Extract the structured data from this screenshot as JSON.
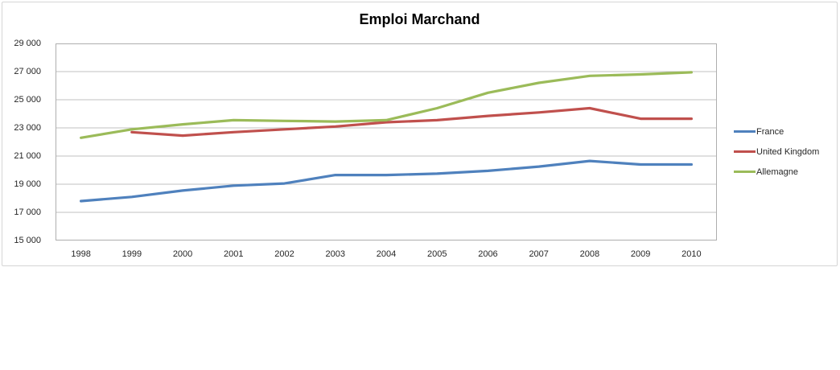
{
  "chart_data": {
    "type": "line",
    "title": "Emploi Marchand",
    "categories": [
      "1998",
      "1999",
      "2000",
      "2001",
      "2002",
      "2003",
      "2004",
      "2005",
      "2006",
      "2007",
      "2008",
      "2009",
      "2010"
    ],
    "series": [
      {
        "name": "France",
        "color": "#4F81BD",
        "values": [
          17800,
          18100,
          18550,
          18900,
          19050,
          19650,
          19650,
          19750,
          19950,
          20250,
          20650,
          20400,
          20400
        ]
      },
      {
        "name": "United Kingdom",
        "color": "#C0504D",
        "values": [
          null,
          22700,
          22450,
          22700,
          22900,
          23100,
          23400,
          23550,
          23850,
          24100,
          24400,
          23650,
          23650
        ]
      },
      {
        "name": "Allemagne",
        "color": "#9BBB59",
        "values": [
          22300,
          22900,
          23250,
          23550,
          23500,
          23450,
          23550,
          24400,
          25500,
          26200,
          26700,
          26800,
          26950
        ]
      }
    ],
    "ylim": [
      15000,
      29000
    ],
    "ytick_step": 2000,
    "yticks": [
      "15 000",
      "17 000",
      "19 000",
      "21 000",
      "23 000",
      "25 000",
      "27 000",
      "29 000"
    ],
    "grid": true,
    "legend_position": "right",
    "xlabel": "",
    "ylabel": ""
  },
  "style": {
    "gridline_color": "#c2c2c2",
    "plot_border_color": "#aeaeae",
    "frame_border_color": "#d5d5d5",
    "text_color": "#262626",
    "title_color": "#000000",
    "background": "#ffffff"
  }
}
